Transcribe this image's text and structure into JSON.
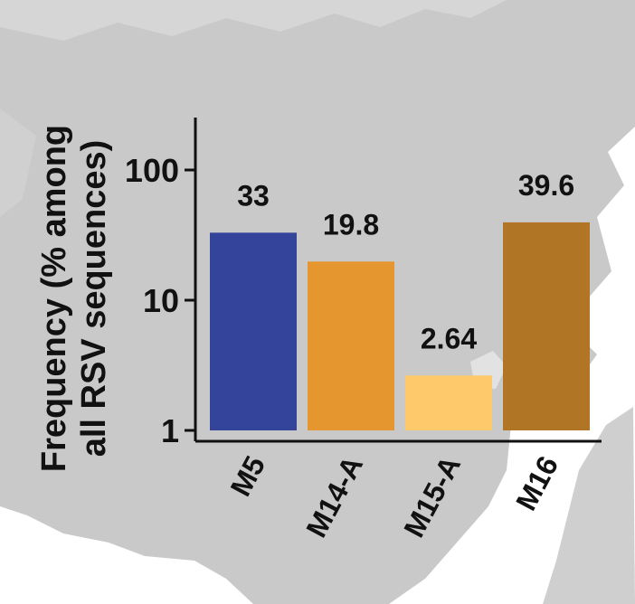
{
  "chart_data": {
    "type": "bar",
    "title": "",
    "ylabel_lines": [
      "Frequency (% among",
      "all RSV sequences)"
    ],
    "xlabel": "",
    "y_scale": "log",
    "ylim": [
      1,
      200
    ],
    "y_ticks": [
      {
        "value": 1,
        "label": "1"
      },
      {
        "value": 10,
        "label": "10"
      },
      {
        "value": 100,
        "label": "100"
      }
    ],
    "categories": [
      "M5",
      "M14-A",
      "M15-A",
      "M16"
    ],
    "values": [
      33,
      19.8,
      2.64,
      39.6
    ],
    "value_labels": [
      "33",
      "19.8",
      "2.64",
      "39.6"
    ],
    "bar_colors": [
      "#34449a",
      "#e6962e",
      "#fec96b",
      "#b07525"
    ],
    "grid": false,
    "legend": "none",
    "background": "grey world map silhouette"
  }
}
